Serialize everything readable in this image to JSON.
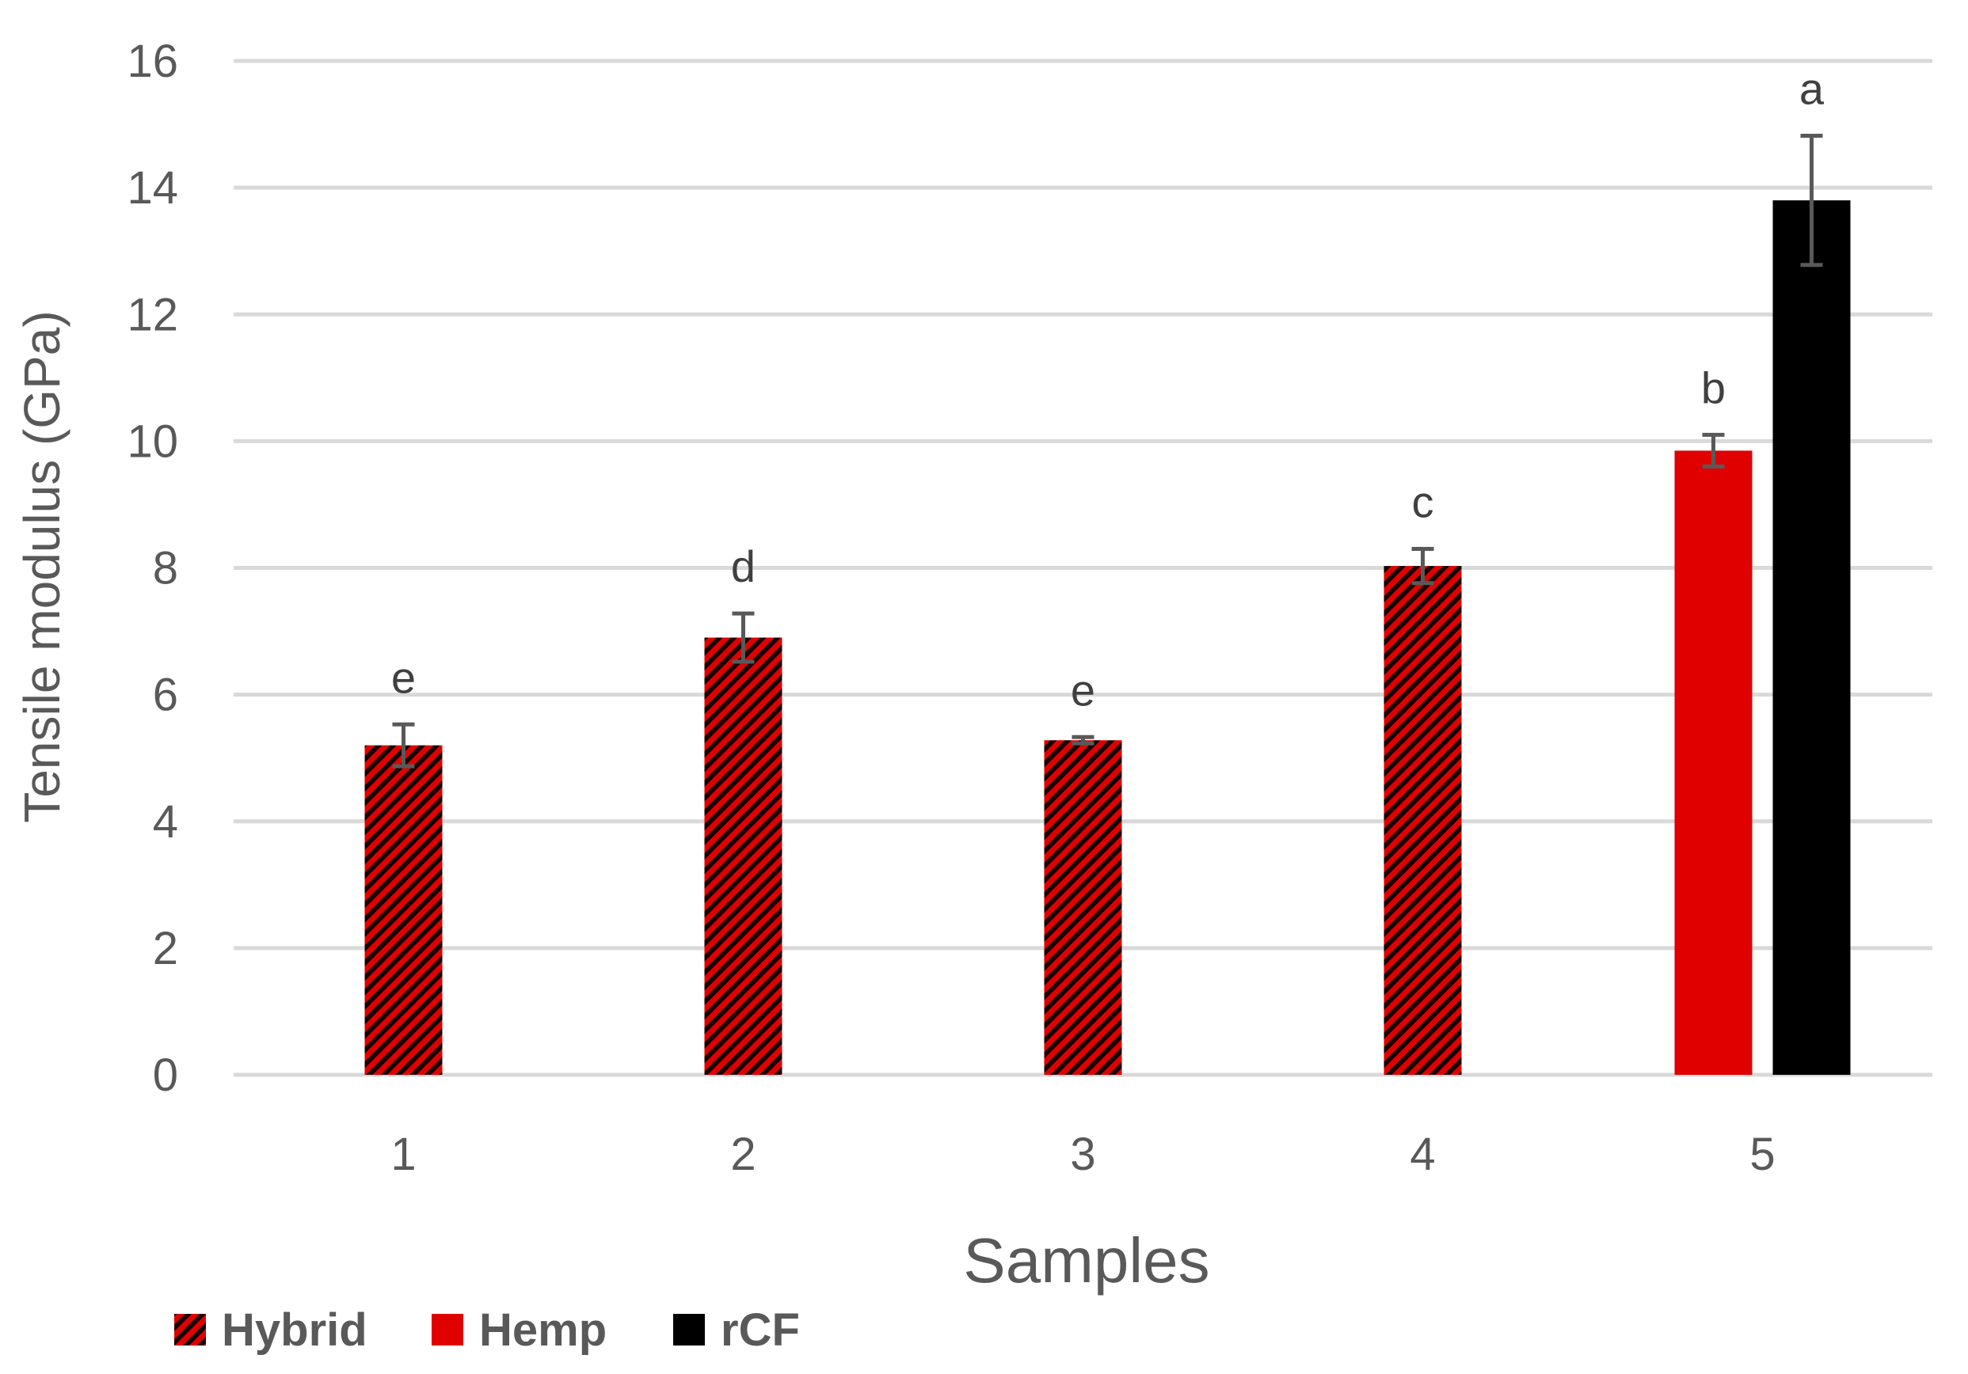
{
  "chart_data": {
    "type": "bar",
    "categories": [
      "1",
      "2",
      "3",
      "4",
      "5"
    ],
    "xlabel": "Samples",
    "ylabel": "Tensile modulus (GPa)",
    "ylim": [
      0,
      16
    ],
    "yticks": [
      0,
      2,
      4,
      6,
      8,
      10,
      12,
      14,
      16
    ],
    "grid": true,
    "legend_position": "bottom-left",
    "series": [
      {
        "name": "Hybrid",
        "color": "#e00000",
        "pattern": "diagonal-stripes",
        "values": [
          5.2,
          6.9,
          5.28,
          8.03,
          null
        ],
        "errors": [
          0.33,
          0.38,
          0.05,
          0.27,
          null
        ]
      },
      {
        "name": "Hemp",
        "color": "#e00000",
        "pattern": "solid",
        "values": [
          null,
          null,
          null,
          null,
          9.85
        ],
        "errors": [
          null,
          null,
          null,
          null,
          0.25
        ]
      },
      {
        "name": "rCF",
        "color": "#000000",
        "pattern": "solid",
        "values": [
          null,
          null,
          null,
          null,
          13.8
        ],
        "errors": [
          null,
          null,
          null,
          null,
          1.02
        ]
      }
    ],
    "annotations": [
      {
        "category": "1",
        "series": "Hybrid",
        "text": "e"
      },
      {
        "category": "2",
        "series": "Hybrid",
        "text": "d"
      },
      {
        "category": "3",
        "series": "Hybrid",
        "text": "e"
      },
      {
        "category": "4",
        "series": "Hybrid",
        "text": "c"
      },
      {
        "category": "5",
        "series": "Hemp",
        "text": "b"
      },
      {
        "category": "5",
        "series": "rCF",
        "text": "a"
      }
    ]
  }
}
